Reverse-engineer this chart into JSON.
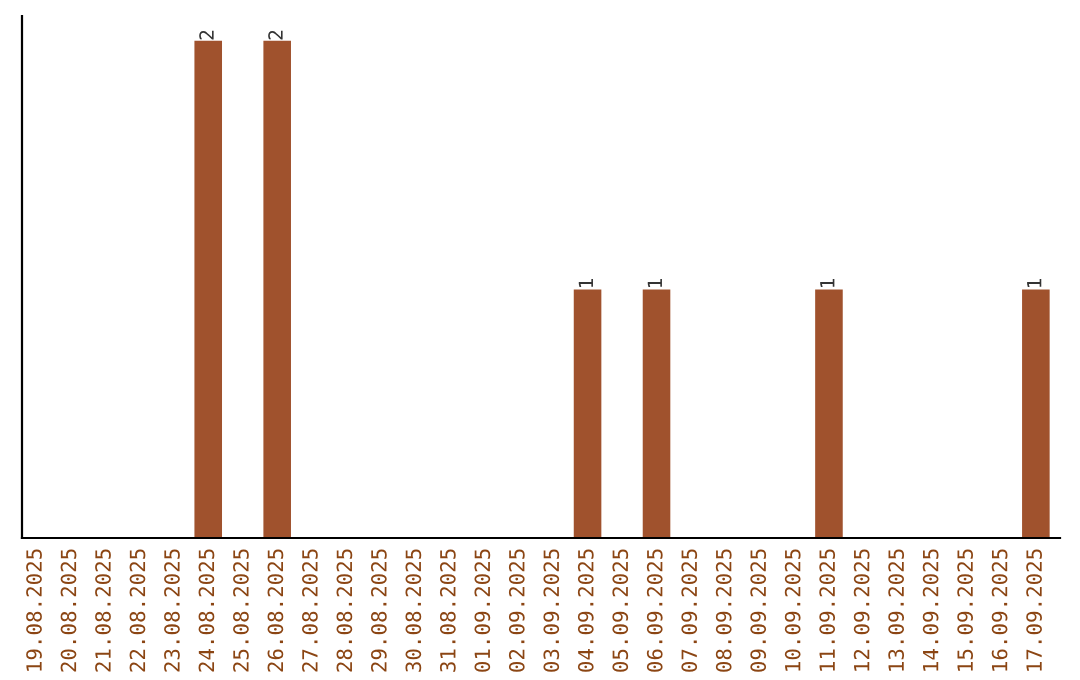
{
  "chart_data": {
    "type": "bar",
    "categories": [
      "19.08.2025",
      "20.08.2025",
      "21.08.2025",
      "22.08.2025",
      "23.08.2025",
      "24.08.2025",
      "25.08.2025",
      "26.08.2025",
      "27.08.2025",
      "28.08.2025",
      "29.08.2025",
      "30.08.2025",
      "31.08.2025",
      "01.09.2025",
      "02.09.2025",
      "03.09.2025",
      "04.09.2025",
      "05.09.2025",
      "06.09.2025",
      "07.09.2025",
      "08.09.2025",
      "09.09.2025",
      "10.09.2025",
      "11.09.2025",
      "12.09.2025",
      "13.09.2025",
      "14.09.2025",
      "15.09.2025",
      "16.09.2025",
      "17.09.2025"
    ],
    "values": [
      0,
      0,
      0,
      0,
      0,
      2,
      0,
      2,
      0,
      0,
      0,
      0,
      0,
      0,
      0,
      0,
      1,
      0,
      1,
      0,
      0,
      0,
      0,
      1,
      0,
      0,
      0,
      0,
      0,
      1
    ],
    "value_labels": [
      null,
      null,
      null,
      null,
      null,
      "2",
      null,
      "2",
      null,
      null,
      null,
      null,
      null,
      null,
      null,
      null,
      "1",
      null,
      "1",
      null,
      null,
      null,
      null,
      "1",
      null,
      null,
      null,
      null,
      null,
      "1"
    ],
    "color": "#a0522d",
    "ylim": [
      0,
      2.1
    ],
    "tick_labels": "x",
    "grid": false,
    "legend": false
  }
}
